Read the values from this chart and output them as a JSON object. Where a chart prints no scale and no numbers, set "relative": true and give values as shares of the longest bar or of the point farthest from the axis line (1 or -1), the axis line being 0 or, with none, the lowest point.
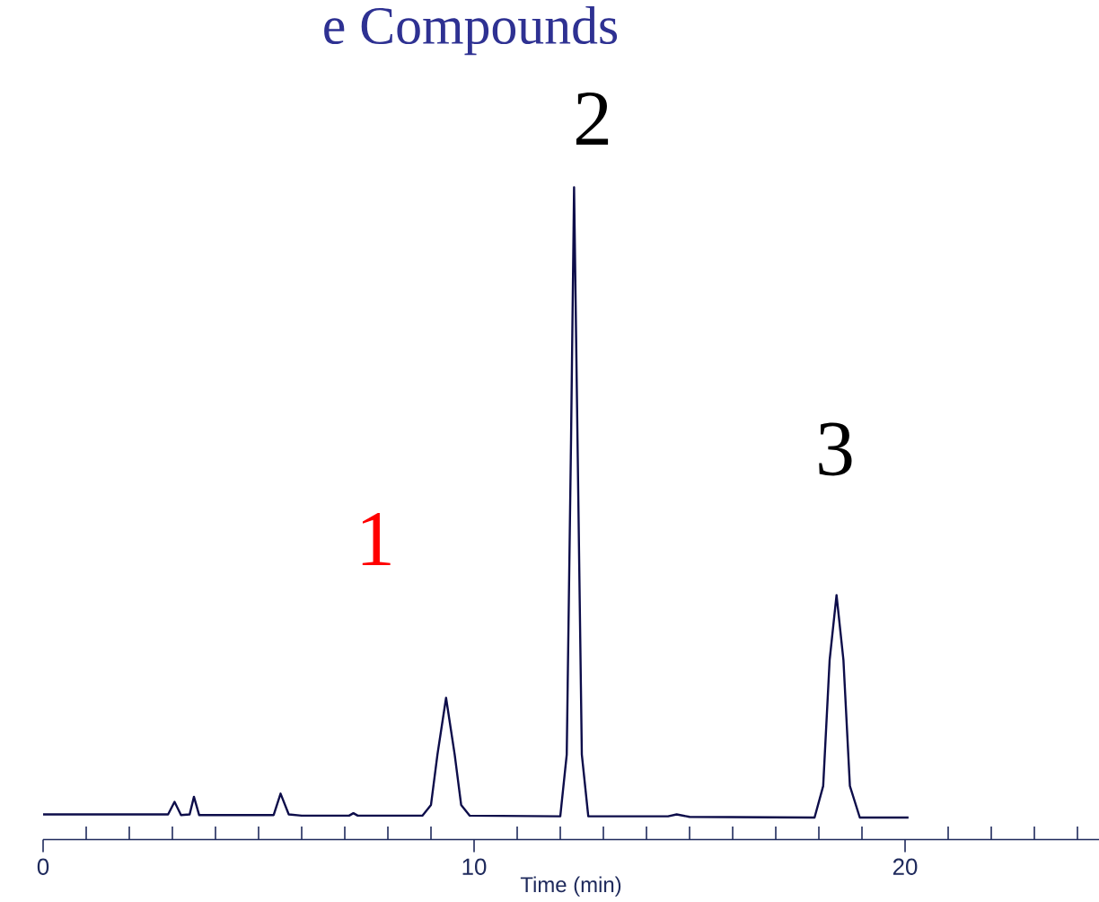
{
  "chart_data": {
    "type": "line",
    "title": "e Compounds",
    "xlabel": "Time (min)",
    "relative": true,
    "xlim": [
      0,
      24.5
    ],
    "xticks": [
      0,
      {
        "value": 1,
        "label": null
      },
      {
        "value": 2,
        "label": null
      },
      {
        "value": 3,
        "label": null
      },
      {
        "value": 4,
        "label": null
      },
      {
        "value": 5,
        "label": null
      },
      {
        "value": 6,
        "label": null
      },
      {
        "value": 7,
        "label": null
      },
      {
        "value": 8,
        "label": null
      },
      {
        "value": 9,
        "label": null
      },
      10,
      {
        "value": 11,
        "label": null
      },
      {
        "value": 12,
        "label": null
      },
      {
        "value": 13,
        "label": null
      },
      {
        "value": 14,
        "label": null
      },
      {
        "value": 15,
        "label": null
      },
      {
        "value": 16,
        "label": null
      },
      {
        "value": 17,
        "label": null
      },
      {
        "value": 18,
        "label": null
      },
      {
        "value": 19,
        "label": null
      },
      20,
      {
        "value": 21,
        "label": null
      },
      {
        "value": 22,
        "label": null
      },
      {
        "value": 23,
        "label": null
      },
      {
        "value": 24,
        "label": null
      }
    ],
    "x": [
      0,
      2.9,
      3.05,
      3.2,
      3.4,
      3.5,
      3.62,
      5.35,
      5.51,
      5.7,
      6.0,
      7.1,
      7.2,
      7.3,
      8.8,
      9.0,
      9.15,
      9.35,
      9.55,
      9.7,
      9.9,
      12.0,
      12.15,
      12.25,
      12.32,
      12.4,
      12.5,
      12.65,
      14.5,
      14.7,
      15.0,
      17.9,
      18.1,
      18.25,
      18.41,
      18.57,
      18.72,
      18.95,
      20.08
    ],
    "series": [
      {
        "color": "#0d0d4a",
        "values": [
          0.005,
          0.005,
          0.025,
          0.004,
          0.005,
          0.033,
          0.004,
          0.004,
          0.038,
          0.005,
          0.003,
          0.003,
          0.007,
          0.003,
          0.003,
          0.02,
          0.1,
          0.19,
          0.1,
          0.02,
          0.003,
          0.002,
          0.1,
          0.6,
          1.0,
          0.6,
          0.1,
          0.002,
          0.002,
          0.005,
          0.001,
          0.0,
          0.05,
          0.25,
          0.353,
          0.25,
          0.05,
          0.0,
          0.0
        ]
      }
    ],
    "annotations": [
      "1",
      "2",
      "3"
    ],
    "grid": false,
    "marker": "none",
    "line_style": "solid"
  }
}
